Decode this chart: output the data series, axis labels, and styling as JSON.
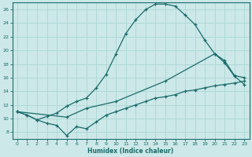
{
  "xlabel": "Humidex (Indice chaleur)",
  "ylabel": "",
  "xlim": [
    -0.5,
    23.5
  ],
  "ylim": [
    7,
    27
  ],
  "xticks": [
    0,
    1,
    2,
    3,
    4,
    5,
    6,
    7,
    8,
    9,
    10,
    11,
    12,
    13,
    14,
    15,
    16,
    17,
    18,
    19,
    20,
    21,
    22,
    23
  ],
  "yticks": [
    8,
    10,
    12,
    14,
    16,
    18,
    20,
    22,
    24,
    26
  ],
  "bg_color": "#cce8e8",
  "line_color": "#1a6b6b",
  "grid_color": "#b0d8d8",
  "curve1_x": [
    0,
    1,
    2,
    3,
    4,
    5,
    6,
    7,
    8,
    9,
    10,
    11,
    12,
    13,
    14,
    15,
    16,
    17,
    18,
    19,
    20,
    21,
    22,
    23
  ],
  "curve1_y": [
    11,
    10.5,
    9.8,
    10.3,
    10.8,
    11.8,
    12.5,
    13.0,
    14.5,
    16.5,
    19.5,
    22.5,
    24.5,
    26.0,
    26.8,
    26.8,
    26.5,
    25.2,
    23.8,
    21.5,
    19.5,
    18.2,
    16.2,
    15.0
  ],
  "curve2_x": [
    0,
    1,
    2,
    3,
    4,
    5,
    6,
    7,
    8,
    9,
    10,
    11,
    12,
    13,
    14,
    15,
    16,
    17,
    18,
    19,
    20,
    21,
    22,
    23
  ],
  "curve2_y": [
    11,
    10.5,
    9.8,
    9.3,
    9.0,
    7.5,
    8.8,
    8.5,
    9.5,
    10.5,
    11.0,
    11.5,
    12.0,
    12.5,
    13.0,
    13.2,
    13.5,
    14.0,
    14.2,
    14.5,
    14.8,
    15.0,
    15.2,
    15.5
  ],
  "curve3_x": [
    0,
    5,
    7,
    10,
    15,
    20,
    21,
    22,
    23
  ],
  "curve3_y": [
    11,
    10.2,
    11.5,
    12.5,
    15.5,
    19.5,
    18.5,
    16.3,
    16.0
  ]
}
